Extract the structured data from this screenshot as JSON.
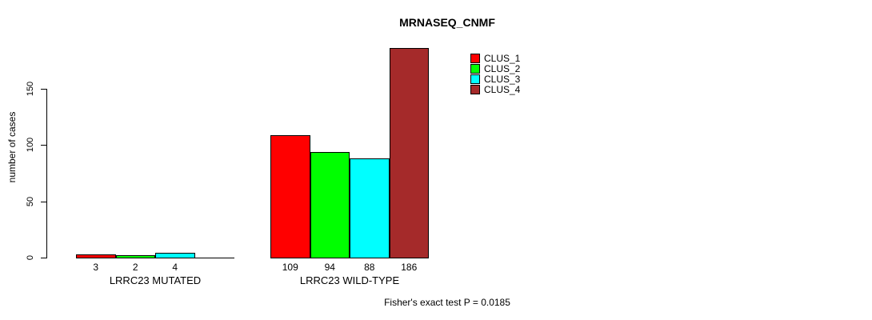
{
  "chart_data": {
    "type": "bar",
    "title": "MRNASEQ_CNMF",
    "ylabel": "number of cases",
    "xlabel": "",
    "annotation": "Fisher's exact test P = 0.0185",
    "categories": [
      "LRRC23 MUTATED",
      "LRRC23 WILD-TYPE"
    ],
    "series": [
      {
        "name": "CLUS_1",
        "color": "#FF0000",
        "values": [
          3,
          109
        ]
      },
      {
        "name": "CLUS_2",
        "color": "#00FF00",
        "values": [
          2,
          94
        ]
      },
      {
        "name": "CLUS_3",
        "color": "#00FFFF",
        "values": [
          4,
          88
        ]
      },
      {
        "name": "CLUS_4",
        "color": "#A52A2A",
        "values": [
          0,
          186
        ]
      }
    ],
    "bar_value_labels": [
      [
        "3",
        "2",
        "4",
        ""
      ],
      [
        "109",
        "94",
        "88",
        "186"
      ]
    ],
    "yticks": [
      0,
      50,
      100,
      150
    ],
    "ylim": [
      0,
      195
    ],
    "grid": false,
    "legend_position": "top-right",
    "background_color": "#FFFFFF",
    "axis_color": "#000000"
  }
}
